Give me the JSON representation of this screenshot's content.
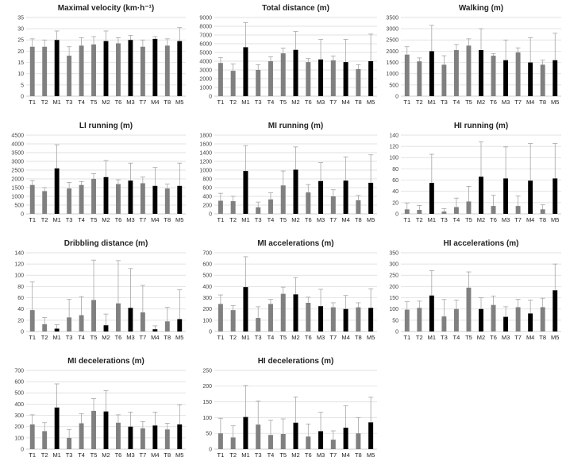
{
  "colors": {
    "training": "#808080",
    "match": "#000000",
    "grid": "#d9d9d9",
    "error_bar": "#9a9a9a"
  },
  "categories": [
    "T1",
    "T2",
    "M1",
    "T3",
    "T4",
    "T5",
    "M2",
    "T6",
    "M3",
    "T7",
    "M4",
    "T8",
    "M5"
  ],
  "match_categories": [
    "M1",
    "M2",
    "M3",
    "M4",
    "M5"
  ],
  "chart_data": [
    {
      "type": "bar",
      "title": "Maximal velocity (km·h⁻¹)",
      "ylim": [
        0,
        35
      ],
      "yticks": [
        0,
        5,
        10,
        15,
        20,
        25,
        30,
        35
      ],
      "values": [
        22,
        22,
        25,
        18,
        22.5,
        23,
        24.5,
        23.5,
        25,
        22,
        25.5,
        22.5,
        24.5
      ],
      "errors": [
        3.5,
        3,
        4,
        4,
        3.5,
        3.5,
        4.5,
        2.5,
        2,
        3,
        1,
        3,
        6
      ]
    },
    {
      "type": "bar",
      "title": "Total distance (m)",
      "ylim": [
        0,
        9000
      ],
      "yticks": [
        0,
        1000,
        2000,
        3000,
        4000,
        5000,
        6000,
        7000,
        8000,
        9000
      ],
      "values": [
        3800,
        2900,
        5600,
        3000,
        4000,
        4900,
        5300,
        3900,
        4200,
        4100,
        3900,
        3100,
        4000
      ],
      "errors": [
        600,
        800,
        2800,
        600,
        500,
        600,
        2100,
        400,
        2300,
        500,
        2600,
        500,
        3100
      ]
    },
    {
      "type": "bar",
      "title": "Walking (m)",
      "ylim": [
        0,
        3500
      ],
      "yticks": [
        0,
        500,
        1000,
        1500,
        2000,
        2500,
        3000,
        3500
      ],
      "values": [
        1850,
        1550,
        2000,
        1400,
        2050,
        2250,
        2050,
        1800,
        1600,
        1950,
        1500,
        1400,
        1600
      ],
      "errors": [
        350,
        150,
        1150,
        400,
        250,
        300,
        950,
        100,
        900,
        200,
        1100,
        200,
        1200
      ]
    },
    {
      "type": "bar",
      "title": "LI running (m)",
      "ylim": [
        0,
        4500
      ],
      "yticks": [
        0,
        500,
        1000,
        1500,
        2000,
        2500,
        3000,
        3500,
        4000,
        4500
      ],
      "values": [
        1650,
        1300,
        2600,
        1450,
        1650,
        2000,
        2100,
        1700,
        1900,
        1750,
        1600,
        1450,
        1600
      ],
      "errors": [
        250,
        200,
        1350,
        350,
        200,
        300,
        950,
        250,
        1000,
        350,
        1050,
        250,
        1300
      ]
    },
    {
      "type": "bar",
      "title": "MI running (m)",
      "ylim": [
        0,
        1800
      ],
      "yticks": [
        0,
        200,
        400,
        600,
        800,
        1000,
        1200,
        1400,
        1600,
        1800
      ],
      "values": [
        300,
        290,
        980,
        150,
        330,
        650,
        1010,
        490,
        750,
        400,
        760,
        310,
        710
      ],
      "errors": [
        170,
        110,
        580,
        120,
        150,
        330,
        520,
        180,
        420,
        150,
        540,
        110,
        640
      ]
    },
    {
      "type": "bar",
      "title": "HI running (m)",
      "ylim": [
        0,
        140
      ],
      "yticks": [
        0,
        20,
        40,
        60,
        80,
        100,
        120,
        140
      ],
      "values": [
        8,
        7,
        55,
        4,
        12,
        22,
        66,
        14,
        63,
        14,
        59,
        8,
        63
      ],
      "errors": [
        11,
        8,
        51,
        5,
        16,
        27,
        62,
        19,
        56,
        18,
        66,
        8,
        62
      ]
    },
    {
      "type": "bar",
      "title": "Dribbling distance (m)",
      "ylim": [
        0,
        140
      ],
      "yticks": [
        0,
        20,
        40,
        60,
        80,
        100,
        120,
        140
      ],
      "values": [
        38,
        13,
        5,
        25,
        29,
        56,
        11,
        50,
        42,
        34,
        4,
        18,
        22
      ],
      "errors": [
        50,
        12,
        7,
        32,
        33,
        71,
        20,
        76,
        70,
        48,
        6,
        25,
        52
      ]
    },
    {
      "type": "bar",
      "title": "MI accelerations (m)",
      "ylim": [
        0,
        700
      ],
      "yticks": [
        0,
        100,
        200,
        300,
        400,
        500,
        600,
        700
      ],
      "values": [
        245,
        190,
        395,
        120,
        245,
        335,
        330,
        255,
        225,
        215,
        200,
        215,
        210
      ],
      "errors": [
        80,
        40,
        270,
        100,
        40,
        60,
        150,
        50,
        150,
        40,
        120,
        40,
        170
      ]
    },
    {
      "type": "bar",
      "title": "HI accelerations (m)",
      "ylim": [
        0,
        350
      ],
      "yticks": [
        0,
        50,
        100,
        150,
        200,
        250,
        300,
        350
      ],
      "values": [
        97,
        105,
        160,
        67,
        100,
        195,
        100,
        118,
        65,
        108,
        80,
        108,
        183
      ],
      "errors": [
        35,
        30,
        110,
        75,
        40,
        70,
        50,
        40,
        45,
        35,
        60,
        40,
        117
      ]
    },
    {
      "type": "bar",
      "title": "MI decelerations (m)",
      "ylim": [
        0,
        700
      ],
      "yticks": [
        0,
        100,
        200,
        300,
        400,
        500,
        600,
        700
      ],
      "values": [
        220,
        160,
        370,
        100,
        230,
        340,
        335,
        235,
        200,
        185,
        210,
        175,
        220
      ],
      "errors": [
        85,
        75,
        210,
        75,
        85,
        110,
        185,
        70,
        130,
        60,
        120,
        55,
        175
      ]
    },
    {
      "type": "bar",
      "title": "HI decelerations (m)",
      "ylim": [
        0,
        250
      ],
      "yticks": [
        0,
        50,
        100,
        150,
        200,
        250
      ],
      "values": [
        50,
        37,
        102,
        78,
        45,
        48,
        84,
        40,
        57,
        30,
        68,
        50,
        85
      ],
      "errors": [
        48,
        37,
        100,
        75,
        47,
        48,
        82,
        40,
        60,
        28,
        70,
        50,
        80
      ]
    }
  ]
}
